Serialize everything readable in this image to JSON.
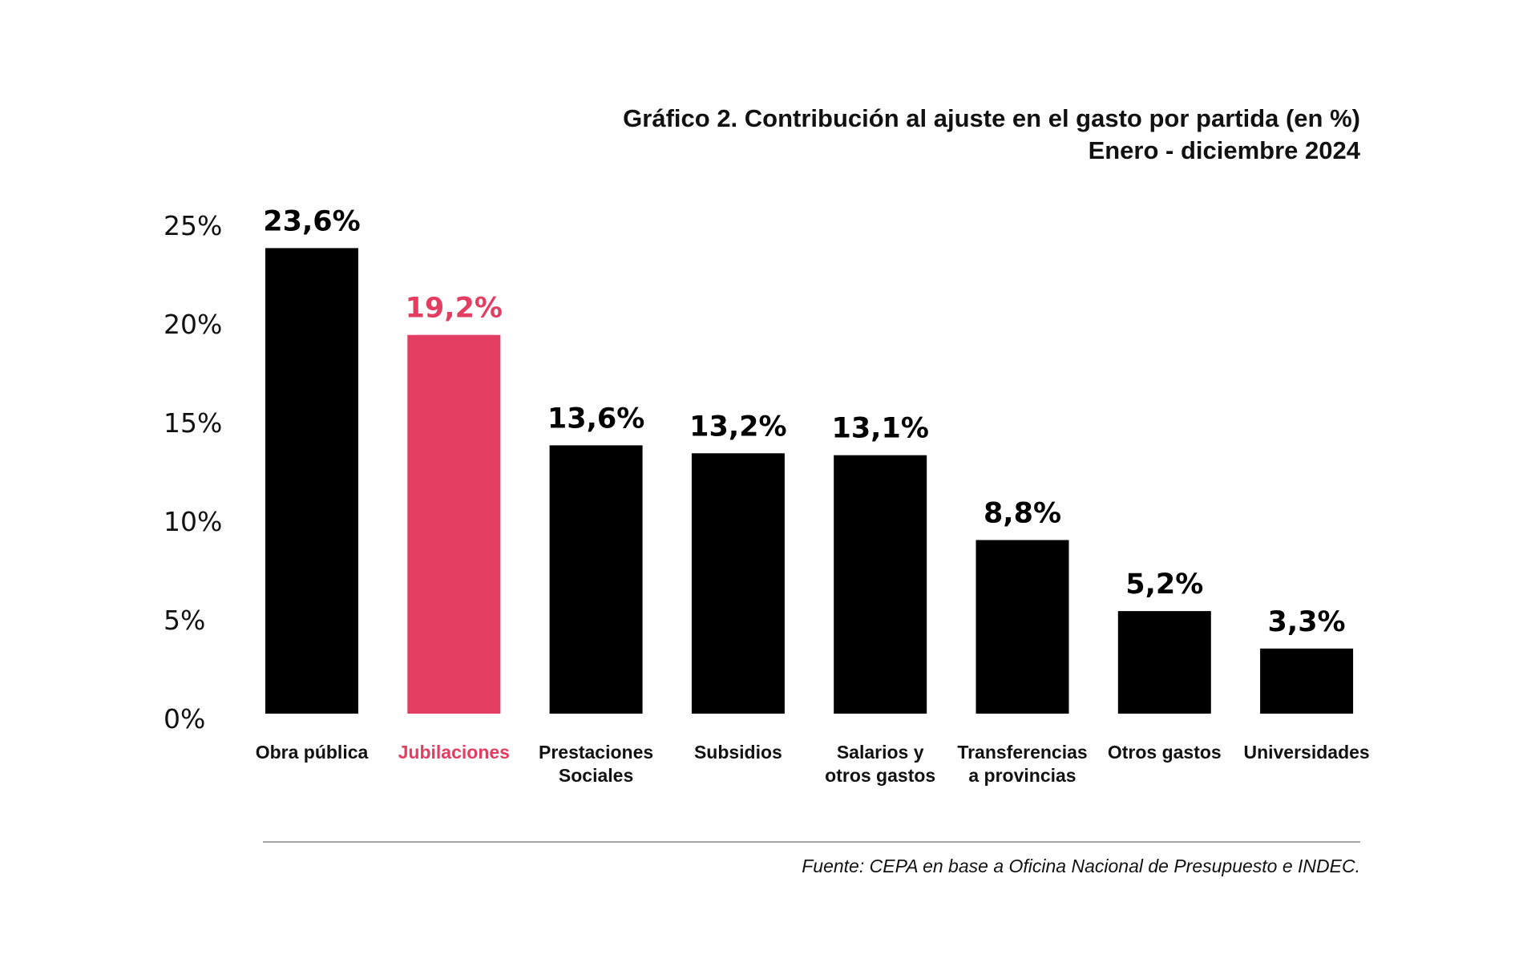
{
  "chart_data": {
    "type": "bar",
    "title": "Gráfico 2. Contribución al ajuste en el gasto por partida (en %)",
    "subtitle": "Enero - diciembre 2024",
    "xlabel": "",
    "ylabel": "",
    "ylim": [
      0,
      25
    ],
    "yticks": [
      "0%",
      "5%",
      "10%",
      "15%",
      "20%",
      "25%"
    ],
    "grid": false,
    "categories": [
      "Obra pública",
      "Jubilaciones",
      "Prestaciones Sociales",
      "Subsidios",
      "Salarios y otros gastos",
      "Transferencias a provincias",
      "Otros gastos",
      "Universidades"
    ],
    "category_lines": [
      [
        "Obra pública"
      ],
      [
        "Jubilaciones"
      ],
      [
        "Prestaciones",
        "Sociales"
      ],
      [
        "Subsidios"
      ],
      [
        "Salarios y",
        "otros gastos"
      ],
      [
        "Transferencias",
        "a provincias"
      ],
      [
        "Otros gastos"
      ],
      [
        "Universidades"
      ]
    ],
    "values": [
      23.6,
      19.2,
      13.6,
      13.2,
      13.1,
      8.8,
      5.2,
      3.3
    ],
    "value_labels": [
      "23,6%",
      "19,2%",
      "13,6%",
      "13,2%",
      "13,1%",
      "8,8%",
      "5,2%",
      "3,3%"
    ],
    "highlight_index": 1,
    "colors": {
      "default": "#000000",
      "highlight": "#e33d62",
      "text": "#111111",
      "rule": "#888888"
    }
  },
  "source": "Fuente: CEPA en base a Oficina Nacional de Presupuesto e INDEC."
}
